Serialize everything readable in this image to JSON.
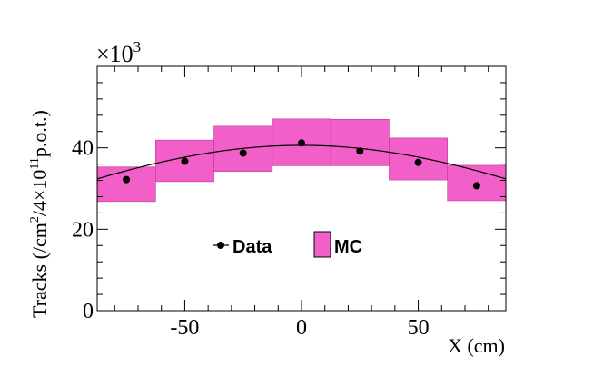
{
  "chart_data": {
    "type": "scatter",
    "title": "",
    "xlabel": "X (cm)",
    "ylabel_main": "Tracks (/cm",
    "ylabel_sup1": "2",
    "ylabel_mid": "/4×10",
    "ylabel_sup2": "11",
    "ylabel_end": "p.o.t.)",
    "y_multiplier_base": "×10",
    "y_multiplier_exp": "3",
    "xlim": [
      -87.5,
      87.5
    ],
    "ylim": [
      0,
      60
    ],
    "x_ticks": [
      -50,
      0,
      50
    ],
    "x_tick_labels": [
      "-50",
      "0",
      "50"
    ],
    "y_ticks": [
      0,
      20,
      40
    ],
    "y_tick_labels": [
      "0",
      "20",
      "40"
    ],
    "grid": false,
    "legend_position": "center",
    "legend": [
      {
        "label": "Data",
        "kind": "marker-line"
      },
      {
        "label": "MC",
        "kind": "box"
      }
    ],
    "colors": {
      "mc_fill": "#f25fc8",
      "mc_edge": "#b93b93",
      "data": "#000000"
    },
    "mc_bins": [
      {
        "x_low": -87.5,
        "x_high": -62.5,
        "y_low": 26.8,
        "y_high": 35.3
      },
      {
        "x_low": -62.5,
        "x_high": -37.5,
        "y_low": 31.7,
        "y_high": 41.9
      },
      {
        "x_low": -37.5,
        "x_high": -12.5,
        "y_low": 34.2,
        "y_high": 45.3
      },
      {
        "x_low": -12.5,
        "x_high": 12.5,
        "y_low": 35.6,
        "y_high": 47.1
      },
      {
        "x_low": 12.5,
        "x_high": 37.5,
        "y_low": 35.6,
        "y_high": 47.0
      },
      {
        "x_low": 37.5,
        "x_high": 62.5,
        "y_low": 32.1,
        "y_high": 42.4
      },
      {
        "x_low": 62.5,
        "x_high": 87.5,
        "y_low": 27.0,
        "y_high": 35.7
      }
    ],
    "data_points": {
      "x": [
        -75,
        -50,
        -25,
        0,
        25,
        50,
        75
      ],
      "y": [
        32.2,
        36.7,
        38.7,
        41.2,
        39.2,
        36.4,
        30.7
      ]
    },
    "fit_curve": {
      "type": "gaussian",
      "amplitude": 40.6,
      "mean": 0,
      "sigma": 130
    }
  }
}
